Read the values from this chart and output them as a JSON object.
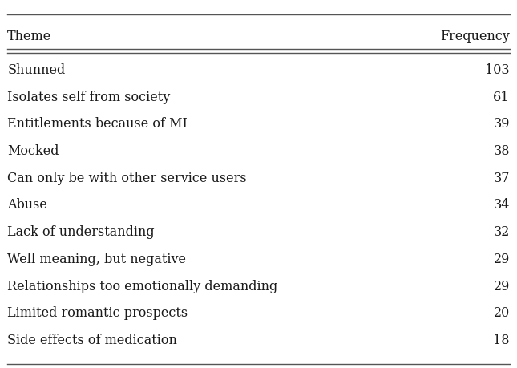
{
  "header_theme": "Theme",
  "header_freq": "Frequency",
  "rows": [
    [
      "Shunned",
      "103"
    ],
    [
      "Isolates self from society",
      "61"
    ],
    [
      "Entitlements because of MI",
      "39"
    ],
    [
      "Mocked",
      "38"
    ],
    [
      "Can only be with other service users",
      "37"
    ],
    [
      "Abuse",
      "34"
    ],
    [
      "Lack of understanding",
      "32"
    ],
    [
      "Well meaning, but negative",
      "29"
    ],
    [
      "Relationships too emotionally demanding",
      "29"
    ],
    [
      "Limited romantic prospects",
      "20"
    ],
    [
      "Side effects of medication",
      "18"
    ]
  ],
  "background_color": "#ffffff",
  "text_color": "#1a1a1a",
  "line_color": "#555555",
  "font_size": 11.5,
  "header_font_size": 11.5,
  "fig_width": 6.45,
  "fig_height": 4.6,
  "dpi": 100
}
